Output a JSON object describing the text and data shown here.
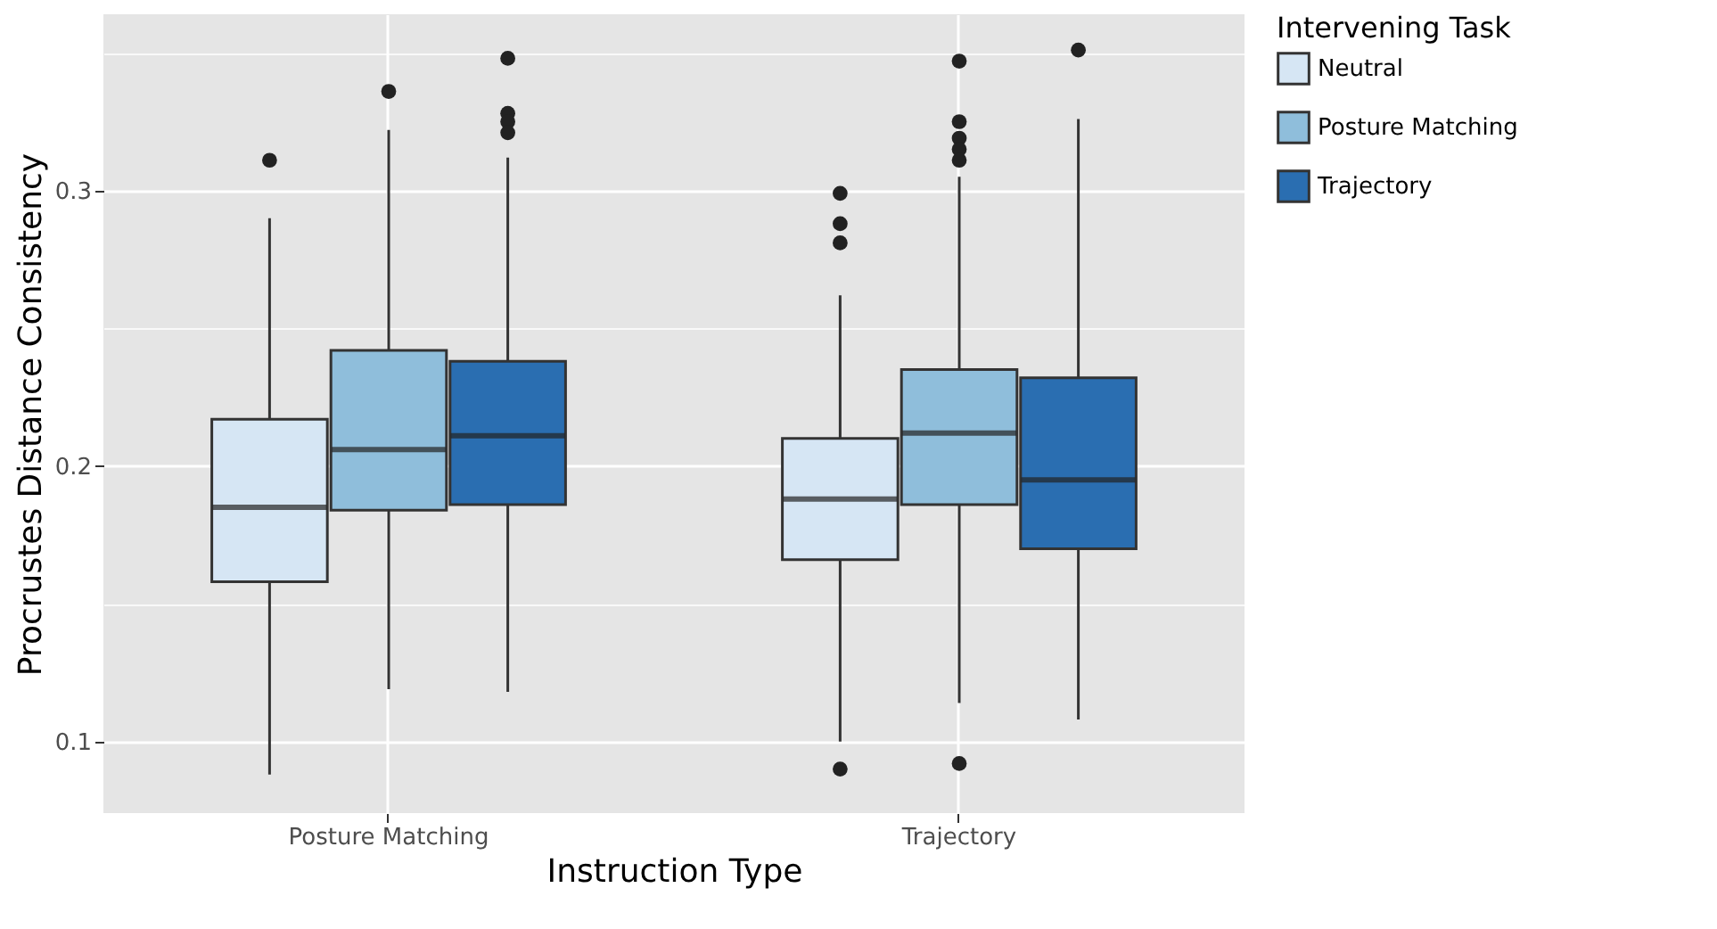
{
  "chart_data": {
    "type": "box",
    "xlabel": "Instruction Type",
    "ylabel": "Procrustes Distance Consistency",
    "legend_title": "Intervening Task",
    "categories": [
      "Posture Matching",
      "Trajectory"
    ],
    "series": [
      {
        "name": "Neutral",
        "color": "#d6e6f4",
        "boxes": [
          {
            "low": 0.088,
            "q1": 0.158,
            "median": 0.185,
            "q3": 0.217,
            "high": 0.29,
            "outliers": [
              0.311
            ]
          },
          {
            "low": 0.1,
            "q1": 0.166,
            "median": 0.188,
            "q3": 0.21,
            "high": 0.262,
            "outliers": [
              0.299,
              0.288,
              0.281,
              0.09
            ]
          }
        ]
      },
      {
        "name": "Posture Matching",
        "color": "#8fbedb",
        "boxes": [
          {
            "low": 0.119,
            "q1": 0.184,
            "median": 0.206,
            "q3": 0.242,
            "high": 0.322,
            "outliers": [
              0.336
            ]
          },
          {
            "low": 0.114,
            "q1": 0.186,
            "median": 0.212,
            "q3": 0.235,
            "high": 0.305,
            "outliers": [
              0.347,
              0.325,
              0.319,
              0.315,
              0.311,
              0.092
            ]
          }
        ]
      },
      {
        "name": "Trajectory",
        "color": "#2a6eb1",
        "boxes": [
          {
            "low": 0.118,
            "q1": 0.186,
            "median": 0.211,
            "q3": 0.238,
            "high": 0.312,
            "outliers": [
              0.348,
              0.328,
              0.325,
              0.321
            ]
          },
          {
            "low": 0.108,
            "q1": 0.17,
            "median": 0.195,
            "q3": 0.232,
            "high": 0.326,
            "outliers": [
              0.351
            ]
          }
        ]
      }
    ],
    "ylim": [
      0.074,
      0.364
    ],
    "yticks": [
      0.1,
      {
        "value": 0.15,
        "label": null
      },
      0.2,
      {
        "value": 0.25,
        "label": null
      },
      0.3,
      {
        "value": 0.35,
        "label": null
      }
    ],
    "grid": true,
    "legend": "right"
  }
}
